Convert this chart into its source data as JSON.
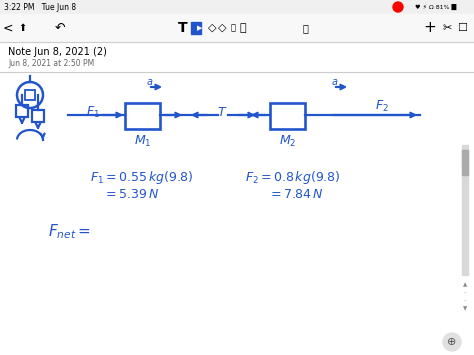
{
  "bg_color": "#ffffff",
  "blue": "#2255cc",
  "status_bar_text": "3:22 PM   Tue Jun 8",
  "status_bar_right": "81%",
  "note_title": "Note Jun 8, 2021 (2)",
  "note_subtitle": "Jun 8, 2021 at 2:50 PM",
  "figsize": [
    4.74,
    3.55
  ],
  "dpi": 100
}
